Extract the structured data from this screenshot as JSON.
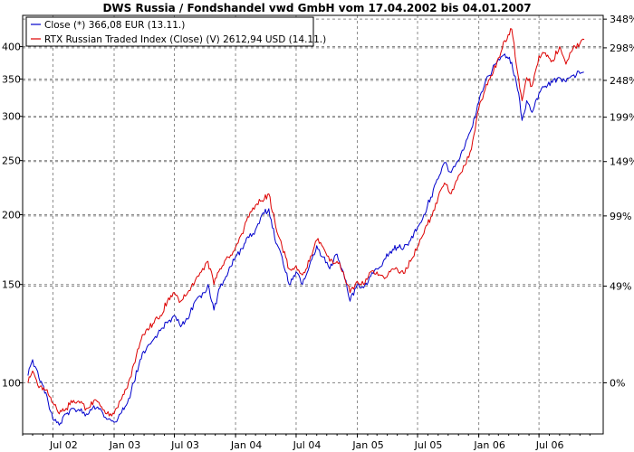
{
  "chart_data": {
    "type": "line",
    "title": "DWS Russia / Fondshandel vwd GmbH vom 17.04.2002 bis 04.01.2007",
    "xlabel": "",
    "ylabel": "",
    "x_tick_labels": [
      "Jul 02",
      "Jan 03",
      "Jul 03",
      "Jan 04",
      "Jul 04",
      "Jan 05",
      "Jul 05",
      "Jan 06",
      "Jul 06"
    ],
    "y_left": {
      "scale": "log",
      "ticks": [
        100,
        150,
        200,
        250,
        300,
        350,
        400
      ]
    },
    "y_right": {
      "ticks": [
        "0%",
        "49%",
        "99%",
        "149%",
        "199%",
        "248%",
        "298%",
        "348%"
      ]
    },
    "grid": true,
    "legend_position": "top-left",
    "series": [
      {
        "name": "Close (*) 366,08 EUR (13.11.)",
        "color": "#0000cc",
        "dates": [
          "2002-04-17",
          "2002-05-01",
          "2002-05-20",
          "2002-06-10",
          "2002-07-01",
          "2002-07-20",
          "2002-08-10",
          "2002-09-01",
          "2002-09-20",
          "2002-10-10",
          "2002-11-01",
          "2002-11-20",
          "2002-12-10",
          "2003-01-01",
          "2003-01-20",
          "2003-02-10",
          "2003-03-01",
          "2003-03-20",
          "2003-04-10",
          "2003-05-01",
          "2003-05-20",
          "2003-06-10",
          "2003-07-01",
          "2003-07-20",
          "2003-08-10",
          "2003-09-01",
          "2003-09-20",
          "2003-10-10",
          "2003-10-28",
          "2003-11-15",
          "2003-12-10",
          "2004-01-01",
          "2004-01-20",
          "2004-02-10",
          "2004-03-01",
          "2004-03-20",
          "2004-04-10",
          "2004-05-01",
          "2004-05-20",
          "2004-06-10",
          "2004-07-01",
          "2004-07-20",
          "2004-08-10",
          "2004-09-01",
          "2004-09-20",
          "2004-10-10",
          "2004-11-01",
          "2004-11-20",
          "2004-12-10",
          "2005-01-01",
          "2005-01-20",
          "2005-02-10",
          "2005-03-01",
          "2005-03-20",
          "2005-04-10",
          "2005-05-01",
          "2005-05-20",
          "2005-06-10",
          "2005-07-01",
          "2005-07-20",
          "2005-08-10",
          "2005-09-01",
          "2005-09-20",
          "2005-10-10",
          "2005-11-01",
          "2005-11-20",
          "2005-12-10",
          "2006-01-01",
          "2006-01-20",
          "2006-02-10",
          "2006-03-01",
          "2006-03-20",
          "2006-04-10",
          "2006-05-01",
          "2006-05-11",
          "2006-05-25",
          "2006-06-10",
          "2006-07-01",
          "2006-07-20",
          "2006-08-10",
          "2006-09-01",
          "2006-09-20",
          "2006-10-10",
          "2006-11-01",
          "2006-11-13"
        ],
        "values": [
          103,
          110,
          102,
          96,
          86,
          84,
          88,
          90,
          89,
          88,
          91,
          90,
          86,
          85,
          88,
          92,
          100,
          110,
          116,
          120,
          124,
          128,
          132,
          126,
          130,
          140,
          142,
          150,
          135,
          148,
          158,
          168,
          174,
          182,
          188,
          200,
          205,
          178,
          168,
          150,
          158,
          150,
          162,
          176,
          168,
          160,
          170,
          158,
          140,
          150,
          148,
          155,
          160,
          165,
          172,
          175,
          174,
          180,
          190,
          200,
          215,
          232,
          248,
          238,
          250,
          265,
          285,
          318,
          345,
          362,
          380,
          388,
          375,
          330,
          295,
          320,
          305,
          330,
          340,
          345,
          352,
          346,
          355,
          358,
          360
        ]
      },
      {
        "name": "RTX Russian Traded Index (Close) (V) 2612,94 USD (14.11.)",
        "color": "#dd0000",
        "dates": [
          "2002-04-17",
          "2002-05-01",
          "2002-05-20",
          "2002-06-10",
          "2002-07-01",
          "2002-07-20",
          "2002-08-10",
          "2002-09-01",
          "2002-09-20",
          "2002-10-10",
          "2002-11-01",
          "2002-11-20",
          "2002-12-10",
          "2003-01-01",
          "2003-01-20",
          "2003-02-10",
          "2003-03-01",
          "2003-03-20",
          "2003-04-10",
          "2003-05-01",
          "2003-05-20",
          "2003-06-10",
          "2003-07-01",
          "2003-07-20",
          "2003-08-10",
          "2003-09-01",
          "2003-09-20",
          "2003-10-10",
          "2003-10-28",
          "2003-11-15",
          "2003-12-10",
          "2004-01-01",
          "2004-01-20",
          "2004-02-10",
          "2004-03-01",
          "2004-03-20",
          "2004-04-10",
          "2004-05-01",
          "2004-05-20",
          "2004-06-10",
          "2004-07-01",
          "2004-07-20",
          "2004-08-10",
          "2004-09-01",
          "2004-09-20",
          "2004-10-10",
          "2004-11-01",
          "2004-11-20",
          "2004-12-10",
          "2005-01-01",
          "2005-01-20",
          "2005-02-10",
          "2005-03-01",
          "2005-03-20",
          "2005-04-10",
          "2005-05-01",
          "2005-05-20",
          "2005-06-10",
          "2005-07-01",
          "2005-07-20",
          "2005-08-10",
          "2005-09-01",
          "2005-09-20",
          "2005-10-10",
          "2005-11-01",
          "2005-11-20",
          "2005-12-10",
          "2006-01-01",
          "2006-01-20",
          "2006-02-10",
          "2006-03-01",
          "2006-03-20",
          "2006-04-10",
          "2006-05-01",
          "2006-05-11",
          "2006-05-25",
          "2006-06-10",
          "2006-07-01",
          "2006-07-20",
          "2006-08-10",
          "2006-09-01",
          "2006-09-20",
          "2006-10-10",
          "2006-11-01",
          "2006-11-14"
        ],
        "values": [
          100,
          105,
          98,
          97,
          92,
          88,
          90,
          93,
          92,
          90,
          93,
          91,
          88,
          88,
          93,
          98,
          108,
          118,
          125,
          128,
          132,
          140,
          145,
          140,
          145,
          152,
          158,
          165,
          150,
          160,
          168,
          175,
          185,
          198,
          208,
          212,
          218,
          190,
          175,
          160,
          162,
          156,
          165,
          180,
          175,
          165,
          165,
          158,
          145,
          152,
          150,
          158,
          158,
          155,
          158,
          160,
          157,
          165,
          175,
          185,
          198,
          215,
          228,
          218,
          235,
          245,
          262,
          310,
          335,
          355,
          382,
          410,
          430,
          350,
          320,
          352,
          340,
          385,
          390,
          378,
          400,
          372,
          395,
          405,
          412
        ]
      }
    ]
  }
}
